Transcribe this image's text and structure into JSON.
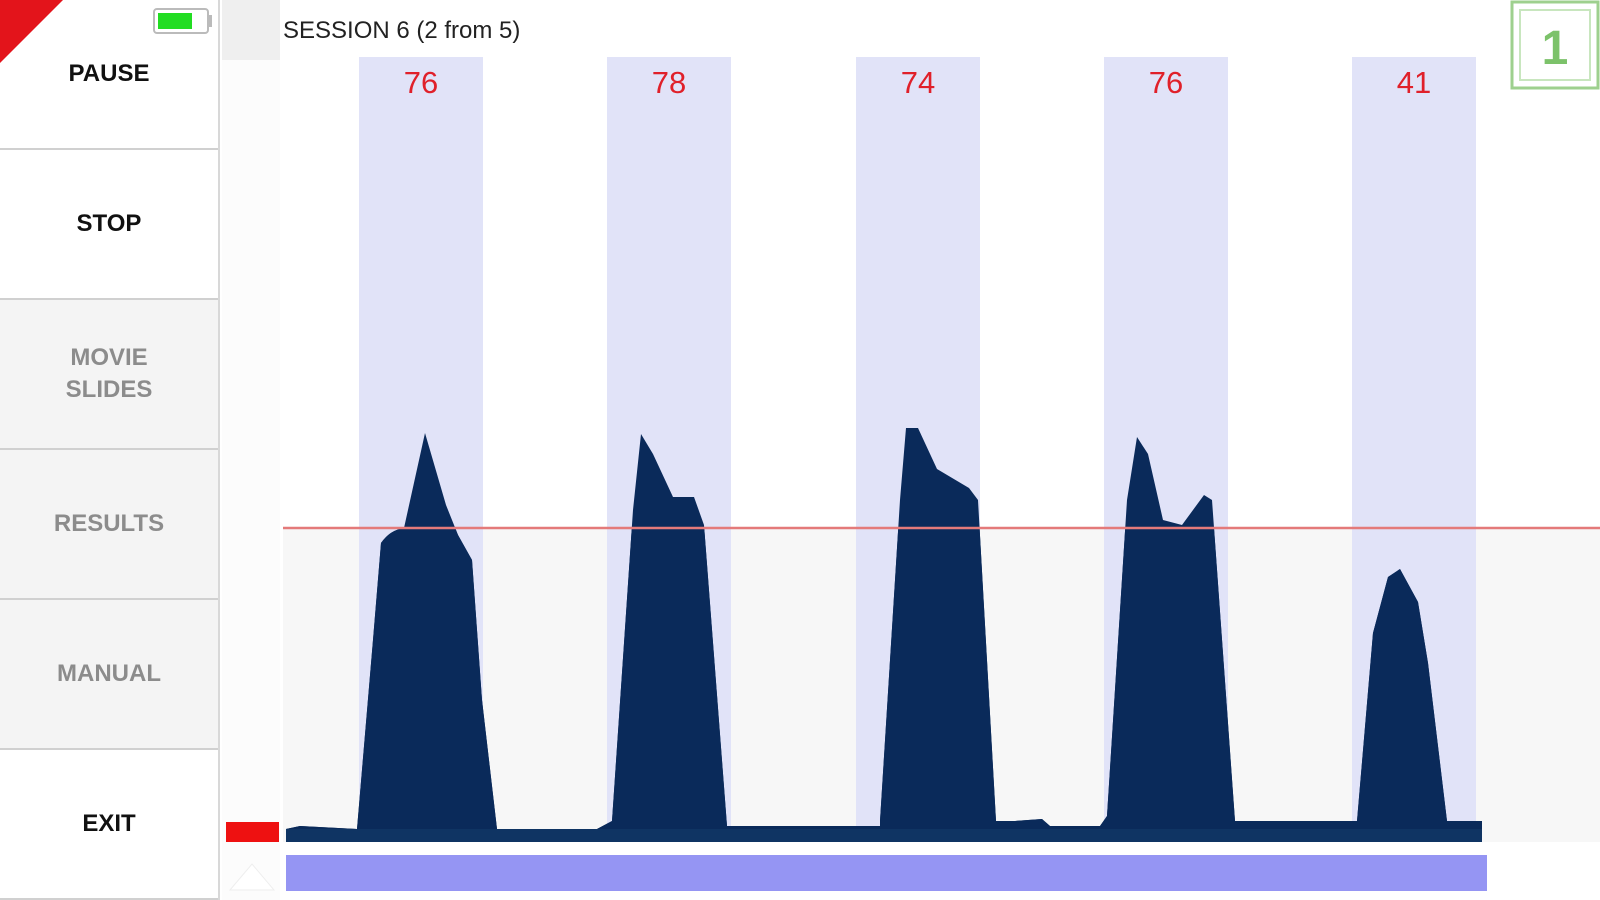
{
  "sidebar": {
    "buttons": [
      {
        "lines": [
          "PAUSE"
        ],
        "enabled": true
      },
      {
        "lines": [
          "STOP"
        ],
        "enabled": true
      },
      {
        "lines": [
          "MOVIE",
          "SLIDES"
        ],
        "enabled": false
      },
      {
        "lines": [
          "RESULTS"
        ],
        "enabled": false
      },
      {
        "lines": [
          "MANUAL"
        ],
        "enabled": false
      },
      {
        "lines": [
          "EXIT"
        ],
        "enabled": true
      }
    ]
  },
  "session": {
    "title": "SESSION 6 (2 from 5)"
  },
  "intervals": [
    {
      "label": 76
    },
    {
      "label": 78
    },
    {
      "label": 74
    },
    {
      "label": 76
    },
    {
      "label": 41
    }
  ],
  "badge": {
    "label": 1
  }
}
